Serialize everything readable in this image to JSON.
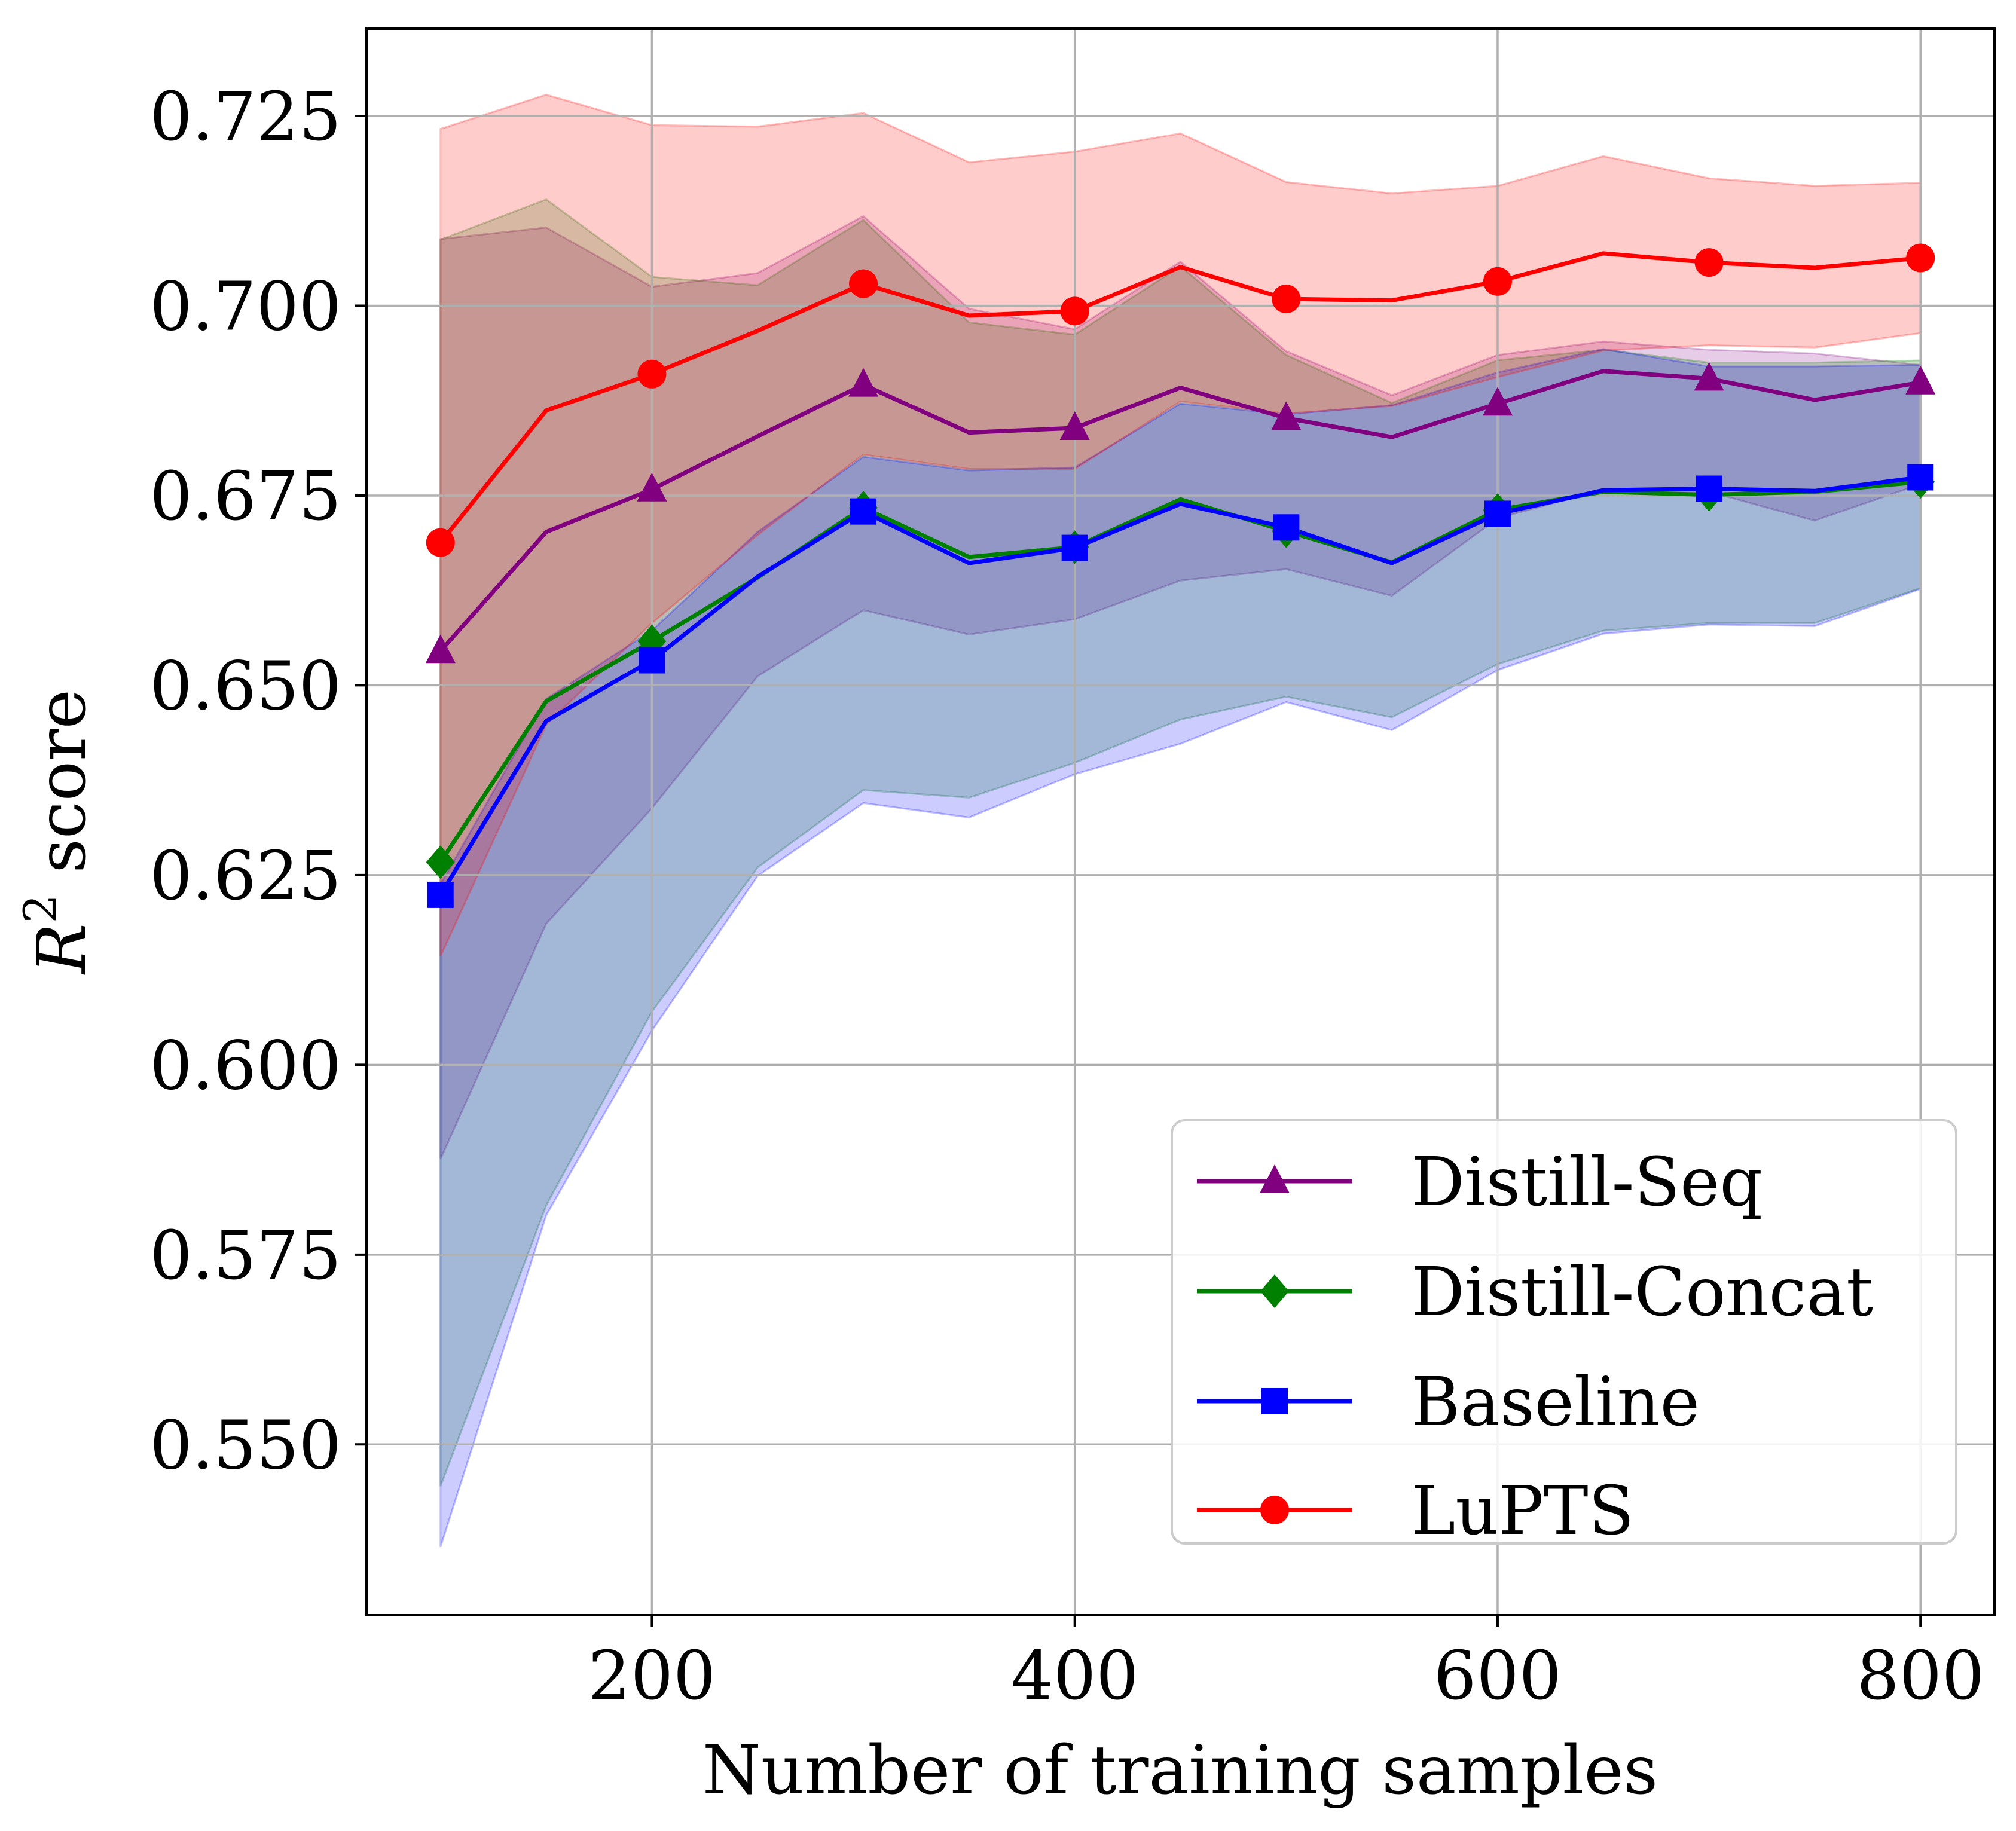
{
  "chart_data": {
    "type": "line",
    "title": "",
    "xlabel": "Number of training samples",
    "ylabel_prefix": "R",
    "ylabel_sup": "2",
    "ylabel_suffix": " score",
    "xlim": [
      65,
      835
    ],
    "ylim": [
      0.5275,
      0.7365
    ],
    "xticks": [
      200,
      400,
      600,
      800
    ],
    "xtick_labels": [
      "200",
      "400",
      "600",
      "800"
    ],
    "yticks": [
      0.55,
      0.575,
      0.6,
      0.625,
      0.65,
      0.675,
      0.7,
      0.725
    ],
    "ytick_labels": [
      "0.550",
      "0.575",
      "0.600",
      "0.625",
      "0.650",
      "0.675",
      "0.700",
      "0.725"
    ],
    "grid": true,
    "legend_position": "lower-right",
    "x": [
      100,
      150,
      200,
      250,
      300,
      350,
      400,
      450,
      500,
      550,
      600,
      650,
      700,
      750,
      800
    ],
    "series": [
      {
        "name": "Distill-Seq",
        "color": "#800080",
        "marker": "triangle",
        "values": [
          0.6545,
          0.6702,
          0.6758,
          0.6828,
          0.6896,
          0.6833,
          0.6839,
          0.6892,
          0.6852,
          0.6827,
          0.6871,
          0.6914,
          0.6904,
          0.6876,
          0.6899
        ],
        "upper": [
          0.7088,
          0.7103,
          0.7025,
          0.7043,
          0.7118,
          0.6996,
          0.6969,
          0.7058,
          0.694,
          0.6882,
          0.6935,
          0.6953,
          0.6942,
          0.6937,
          0.6922
        ],
        "lower": [
          0.5876,
          0.6186,
          0.6338,
          0.6512,
          0.6599,
          0.6567,
          0.6587,
          0.6638,
          0.6653,
          0.6618,
          0.672,
          0.6758,
          0.6755,
          0.6717,
          0.6765
        ]
      },
      {
        "name": "Distill-Concat",
        "color": "#008000",
        "marker": "diamond",
        "values": [
          0.6267,
          0.6479,
          0.6558,
          0.6642,
          0.6734,
          0.6669,
          0.6682,
          0.6745,
          0.6703,
          0.6662,
          0.6731,
          0.6755,
          0.6751,
          0.6755,
          0.6768
        ],
        "upper": [
          0.7087,
          0.714,
          0.7038,
          0.7027,
          0.7113,
          0.6978,
          0.6962,
          0.7052,
          0.6935,
          0.6872,
          0.6928,
          0.6942,
          0.6925,
          0.6925,
          0.6928
        ],
        "lower": [
          0.5445,
          0.5815,
          0.607,
          0.626,
          0.6362,
          0.6352,
          0.6398,
          0.6455,
          0.6485,
          0.6458,
          0.6528,
          0.6572,
          0.6582,
          0.6582,
          0.6628
        ]
      },
      {
        "name": "Baseline",
        "color": "#0000ff",
        "marker": "square",
        "values": [
          0.6224,
          0.6453,
          0.6533,
          0.6643,
          0.6729,
          0.6661,
          0.6681,
          0.6739,
          0.6708,
          0.6661,
          0.6726,
          0.6757,
          0.6759,
          0.6756,
          0.6774
        ],
        "upper": [
          0.6238,
          0.6482,
          0.6572,
          0.6702,
          0.6801,
          0.6783,
          0.6787,
          0.6871,
          0.6857,
          0.6869,
          0.6912,
          0.6943,
          0.692,
          0.692,
          0.6922
        ],
        "lower": [
          0.5365,
          0.5802,
          0.6045,
          0.6249,
          0.6345,
          0.6326,
          0.6383,
          0.6423,
          0.6478,
          0.6441,
          0.652,
          0.6568,
          0.658,
          0.6578,
          0.6627
        ]
      },
      {
        "name": "LuPTS",
        "color": "#ff0000",
        "marker": "circle",
        "values": [
          0.6688,
          0.6862,
          0.691,
          0.6967,
          0.7029,
          0.6987,
          0.6993,
          0.7051,
          0.7009,
          0.7007,
          0.7032,
          0.7069,
          0.7057,
          0.705,
          0.7063
        ],
        "upper": [
          0.7233,
          0.7278,
          0.7238,
          0.7236,
          0.7254,
          0.7189,
          0.7203,
          0.7227,
          0.7163,
          0.7148,
          0.7158,
          0.7197,
          0.7168,
          0.7158,
          0.7162
        ],
        "lower": [
          0.6143,
          0.6448,
          0.6582,
          0.6698,
          0.6804,
          0.6785,
          0.6785,
          0.6874,
          0.6858,
          0.6868,
          0.6906,
          0.6941,
          0.6948,
          0.6945,
          0.6964
        ]
      }
    ]
  }
}
